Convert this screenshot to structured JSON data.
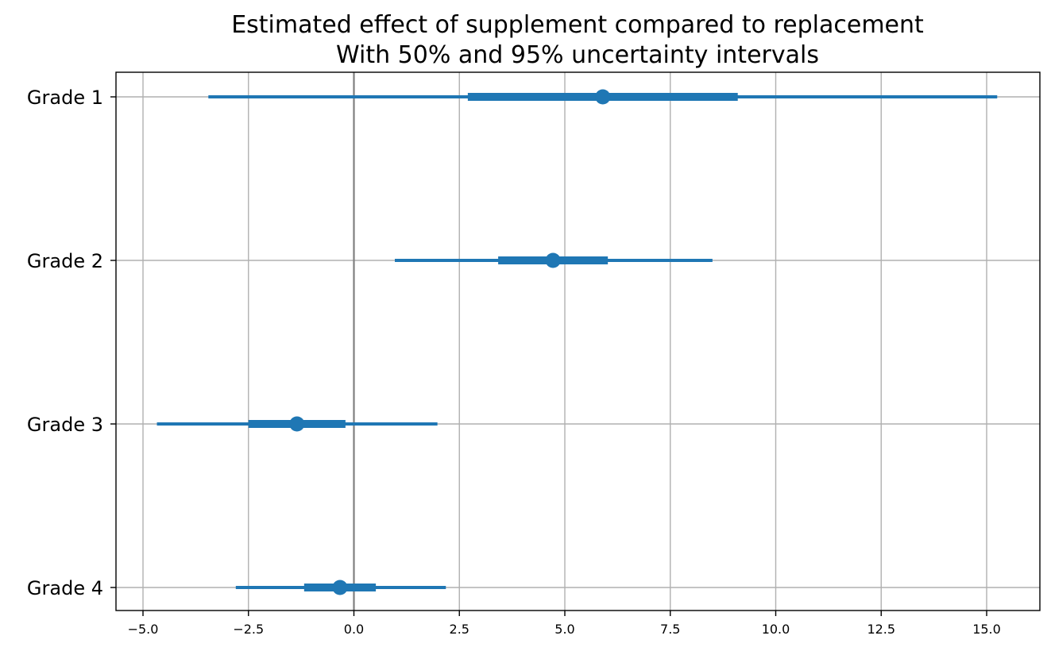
{
  "chart_data": {
    "type": "scatter",
    "title": "Estimated effect of supplement compared to replacement",
    "subtitle": "With 50% and 95% uncertainty intervals",
    "xlabel": "",
    "ylabel": "",
    "xlim": [
      -5.0,
      15.0
    ],
    "xticks": [
      "−5.0",
      "−2.5",
      "0.0",
      "2.5",
      "5.0",
      "7.5",
      "10.0",
      "12.5",
      "15.0"
    ],
    "xtick_values": [
      -5.0,
      -2.5,
      0.0,
      2.5,
      5.0,
      7.5,
      10.0,
      12.5,
      15.0
    ],
    "grid": true,
    "reference_line_x": 0,
    "categories": [
      "Grade 1",
      "Grade 2",
      "Grade 3",
      "Grade 4"
    ],
    "estimates": [
      5.9,
      4.72,
      -1.35,
      -0.33
    ],
    "interval_50": [
      [
        2.7,
        9.1
      ],
      [
        3.42,
        6.02
      ],
      [
        -2.5,
        -0.2
      ],
      [
        -1.18,
        0.52
      ]
    ],
    "interval_95": [
      [
        -3.45,
        15.25
      ],
      [
        0.97,
        8.5
      ],
      [
        -4.67,
        1.98
      ],
      [
        -2.8,
        2.18
      ]
    ],
    "color": "#1f77b4"
  }
}
